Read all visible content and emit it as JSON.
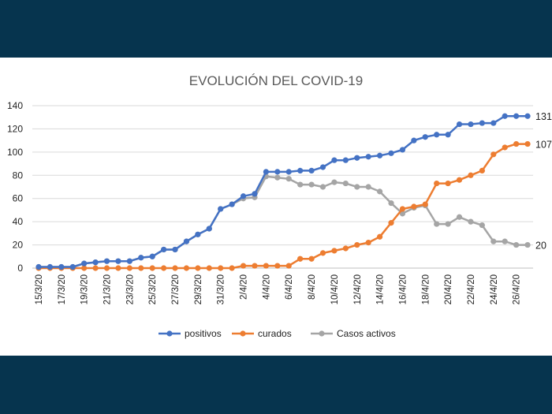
{
  "chart_data": {
    "type": "line",
    "title": "EVOLUCIÓN DEL COVID-19",
    "xlabel": "",
    "ylabel": "",
    "ylim": [
      0,
      140
    ],
    "yticks": [
      "0",
      "20",
      "40",
      "60",
      "80",
      "100",
      "120",
      "140"
    ],
    "grid": true,
    "legend_position": "bottom",
    "categories": [
      "15/3/20",
      "16/3/20",
      "17/3/20",
      "18/3/20",
      "19/3/20",
      "20/3/20",
      "21/3/20",
      "22/3/20",
      "23/3/20",
      "24/3/20",
      "25/3/20",
      "26/3/20",
      "27/3/20",
      "28/3/20",
      "29/3/20",
      "30/3/20",
      "31/3/20",
      "1/4/20",
      "2/4/20",
      "3/4/20",
      "4/4/20",
      "5/4/20",
      "6/4/20",
      "7/4/20",
      "8/4/20",
      "9/4/20",
      "10/4/20",
      "11/4/20",
      "12/4/20",
      "13/4/20",
      "14/4/20",
      "15/4/20",
      "16/4/20",
      "17/4/20",
      "18/4/20",
      "19/4/20",
      "20/4/20",
      "21/4/20",
      "22/4/20",
      "23/4/20",
      "24/4/20",
      "25/4/20",
      "26/4/20",
      "27/4/20"
    ],
    "series": [
      {
        "name": "positivos",
        "color": "#4472c4",
        "values": [
          1,
          1,
          1,
          1,
          4,
          5,
          6,
          6,
          6,
          9,
          10,
          16,
          16,
          23,
          29,
          34,
          51,
          55,
          62,
          64,
          83,
          83,
          83,
          84,
          84,
          87,
          93,
          93,
          95,
          96,
          97,
          99,
          102,
          110,
          113,
          115,
          115,
          124,
          124,
          125,
          125,
          131,
          131,
          131
        ],
        "end_label": "131"
      },
      {
        "name": "curados",
        "color": "#ed7d31",
        "values": [
          0,
          0,
          0,
          0,
          0,
          0,
          0,
          0,
          0,
          0,
          0,
          0,
          0,
          0,
          0,
          0,
          0,
          0,
          2,
          2,
          2,
          2,
          2,
          8,
          8,
          13,
          15,
          17,
          20,
          22,
          27,
          39,
          51,
          53,
          55,
          73,
          73,
          76,
          80,
          84,
          98,
          104,
          107,
          107
        ],
        "end_label": "107"
      },
      {
        "name": "Casos activos",
        "color": "#a5a5a5",
        "values": [
          1,
          1,
          1,
          1,
          4,
          5,
          6,
          6,
          6,
          9,
          10,
          16,
          16,
          23,
          29,
          34,
          51,
          55,
          60,
          61,
          79,
          78,
          77,
          72,
          72,
          70,
          74,
          73,
          70,
          70,
          66,
          56,
          47,
          52,
          54,
          38,
          38,
          44,
          40,
          37,
          23,
          23,
          20,
          20
        ],
        "end_label": "20"
      }
    ]
  }
}
